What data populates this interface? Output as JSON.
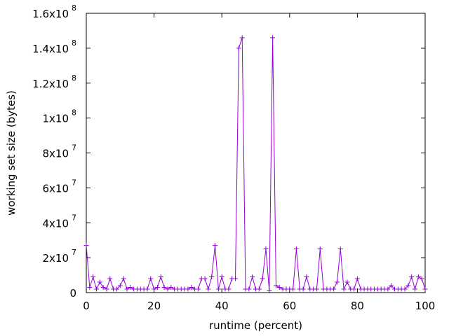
{
  "chart_data": {
    "type": "line",
    "xlabel": "runtime (percent)",
    "ylabel": "working set size (bytes)",
    "xlim": [
      0,
      100
    ],
    "ylim": [
      0,
      160000000
    ],
    "grid": false,
    "series_color": "#9400d3",
    "x_ticks": [
      {
        "value": 0,
        "label": "0"
      },
      {
        "value": 20,
        "label": "20"
      },
      {
        "value": 40,
        "label": "40"
      },
      {
        "value": 60,
        "label": "60"
      },
      {
        "value": 80,
        "label": "80"
      },
      {
        "value": 100,
        "label": "100"
      }
    ],
    "y_ticks": [
      {
        "value": 0,
        "base": "0",
        "exp": ""
      },
      {
        "value": 20000000,
        "base": "2x10",
        "exp": "7"
      },
      {
        "value": 40000000,
        "base": "4x10",
        "exp": "7"
      },
      {
        "value": 60000000,
        "base": "6x10",
        "exp": "7"
      },
      {
        "value": 80000000,
        "base": "8x10",
        "exp": "7"
      },
      {
        "value": 100000000,
        "base": "1x10",
        "exp": "8"
      },
      {
        "value": 120000000,
        "base": "1.2x10",
        "exp": "8"
      },
      {
        "value": 140000000,
        "base": "1.4x10",
        "exp": "8"
      },
      {
        "value": 160000000,
        "base": "1.6x10",
        "exp": "8"
      }
    ],
    "x": [
      0,
      1,
      2,
      3,
      4,
      5,
      6,
      7,
      8,
      9,
      10,
      11,
      12,
      13,
      14,
      15,
      16,
      17,
      18,
      19,
      20,
      21,
      22,
      23,
      24,
      25,
      26,
      27,
      28,
      29,
      30,
      31,
      32,
      33,
      34,
      35,
      36,
      37,
      38,
      39,
      40,
      41,
      42,
      43,
      44,
      45,
      46,
      47,
      48,
      49,
      50,
      51,
      52,
      53,
      54,
      55,
      56,
      57,
      58,
      59,
      60,
      61,
      62,
      63,
      64,
      65,
      66,
      67,
      68,
      69,
      70,
      71,
      72,
      73,
      74,
      75,
      76,
      77,
      78,
      79,
      80,
      81,
      82,
      83,
      84,
      85,
      86,
      87,
      88,
      89,
      90,
      91,
      92,
      93,
      94,
      95,
      96,
      97,
      98,
      99,
      100
    ],
    "values": [
      27000000,
      3000000,
      9000000,
      2000000,
      6000000,
      3000000,
      2000000,
      8000000,
      2000000,
      2000000,
      4000000,
      8000000,
      2000000,
      3000000,
      2000000,
      2000000,
      2000000,
      2000000,
      2000000,
      8000000,
      2000000,
      3000000,
      9000000,
      3000000,
      2000000,
      3000000,
      2000000,
      2000000,
      2000000,
      2000000,
      2000000,
      3000000,
      2000000,
      2000000,
      8000000,
      8000000,
      2000000,
      9000000,
      27000000,
      2000000,
      9000000,
      2000000,
      2000000,
      8000000,
      8000000,
      140000000,
      146000000,
      2000000,
      2000000,
      9000000,
      2000000,
      2000000,
      8000000,
      25000000,
      1000000,
      146000000,
      4000000,
      3000000,
      2000000,
      2000000,
      2000000,
      2000000,
      25000000,
      2000000,
      2000000,
      9000000,
      2000000,
      2000000,
      2000000,
      25000000,
      2000000,
      2000000,
      2000000,
      2000000,
      6000000,
      25000000,
      2000000,
      6000000,
      2000000,
      2000000,
      8000000,
      2000000,
      2000000,
      2000000,
      2000000,
      2000000,
      2000000,
      2000000,
      2000000,
      2000000,
      4000000,
      2000000,
      2000000,
      2000000,
      2000000,
      4000000,
      9000000,
      2000000,
      9000000,
      8000000,
      2000000
    ]
  }
}
